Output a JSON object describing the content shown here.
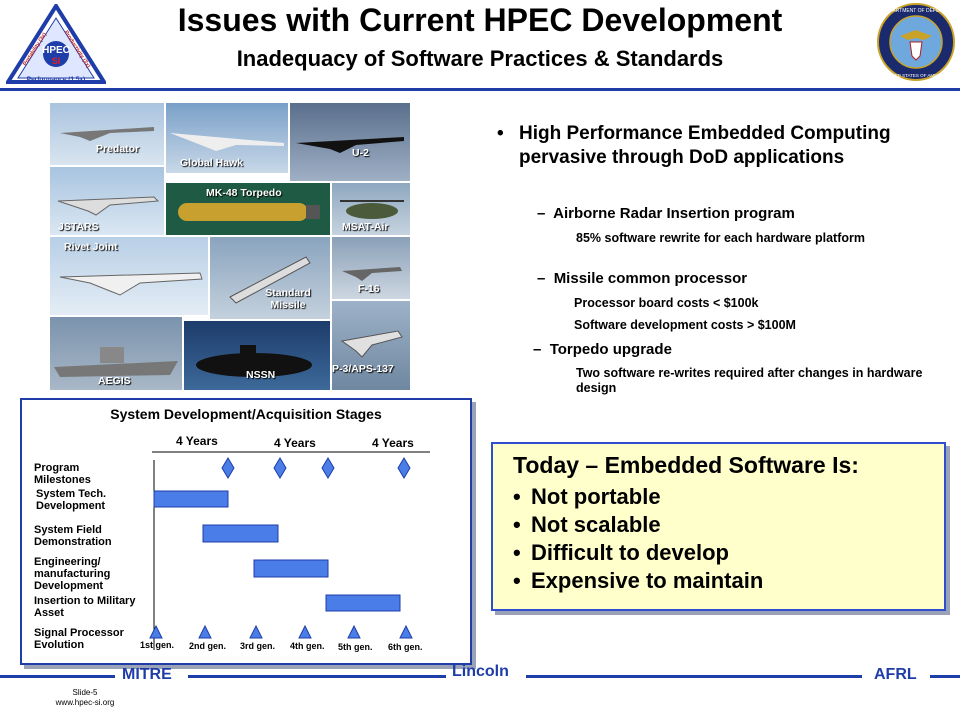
{
  "title": "Issues with Current HPEC Development",
  "subtitle": "Inadequacy of Software Practices & Standards",
  "logo_left": {
    "center": "HPEC",
    "sub": "SI",
    "left_side": "Portability (3x)",
    "right_side": "Productivity (3x)",
    "bottom": "Performance (1.5x)"
  },
  "logo_right": {
    "text_top": "DEPARTMENT OF DEFENSE",
    "text_bottom": "UNITED STATES OF AMERICA"
  },
  "collage": {
    "predator": "Predator",
    "global_hawk": "Global Hawk",
    "u2": "U-2",
    "jstars": "JSTARS",
    "torpedo": "MK-48 Torpedo",
    "msat": "MSAT-Air",
    "rivet": "Rivet Joint",
    "standard_missile": "Standard Missile",
    "f16": "F-16",
    "aegis": "AEGIS",
    "nssn": "NSSN",
    "p3": "P-3/APS-137"
  },
  "bullets": {
    "main": "High Performance Embedded Computing pervasive through DoD applications",
    "s1": "Airborne Radar Insertion program",
    "s1a": "85% software rewrite for each hardware platform",
    "s2": "Missile common processor",
    "s2a": "Processor board costs < $100k",
    "s2b": "Software development costs > $100M",
    "s3": "Torpedo upgrade",
    "s3a": "Two software re-writes required after changes in hardware design"
  },
  "today": {
    "head": "Today – Embedded Software Is:",
    "items": [
      "Not portable",
      "Not scalable",
      "Difficult to develop",
      "Expensive to maintain"
    ]
  },
  "stages": {
    "title": "System Development/Acquisition Stages",
    "years": [
      "4 Years",
      "4 Years",
      "4 Years"
    ],
    "rows": {
      "r1": "Program Milestones",
      "r2": "System Tech. Development",
      "r3": "System Field Demonstration",
      "r4": "Engineering/ manufacturing Development",
      "r5": "Insertion to Military Asset",
      "r6": "Signal Processor Evolution"
    },
    "gens": [
      "1st gen.",
      "2nd gen.",
      "3rd gen.",
      "4th gen.",
      "5th gen.",
      "6th gen."
    ]
  },
  "footer": {
    "mitre": "MITRE",
    "lincoln": "Lincoln",
    "afrl": "AFRL",
    "slide": "Slide-5",
    "url": "www.hpec-si.org"
  },
  "colors": {
    "accent": "#1f3da8",
    "box_fill": "#ffffcc",
    "bar_fill": "#4a7de8"
  }
}
